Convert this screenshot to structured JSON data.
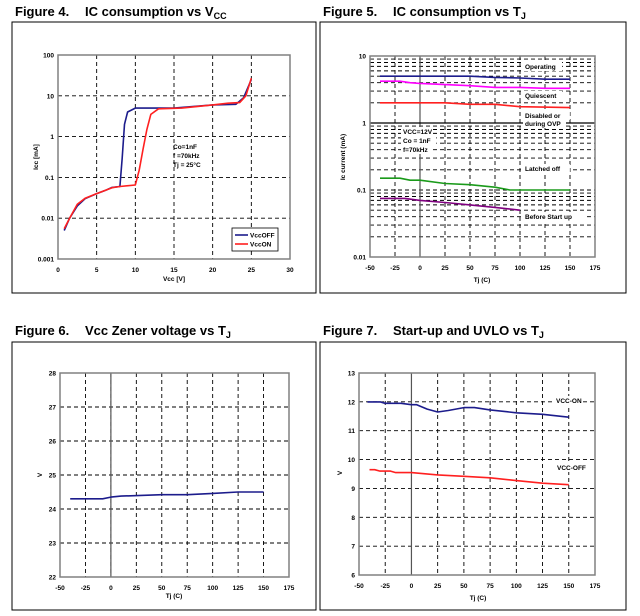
{
  "chart_data": [
    {
      "id": "fig4",
      "type": "line",
      "figure_label": "Figure 4.",
      "title": "IC consumption vs V",
      "title_sub": "CC",
      "xlabel": "Vcc [V]",
      "ylabel": "Icc [mA]",
      "xlim": [
        0,
        30
      ],
      "ylim": [
        0.001,
        100
      ],
      "yscale": "log",
      "xticks": [
        "0",
        "5",
        "10",
        "15",
        "20",
        "25",
        "30"
      ],
      "yticks": [
        "0.001",
        "0.01",
        "0.1",
        "1",
        "10",
        "100"
      ],
      "grid": true,
      "legend": "bottom-right",
      "annotations": [
        "Co=1nF",
        "f =70kHz",
        "Tj =  25°C"
      ],
      "series": [
        {
          "name": "VccOFF",
          "color": "#1c1c8c",
          "x": [
            0.8,
            1.5,
            2.5,
            3.5,
            5,
            6,
            7,
            8,
            8.3,
            8.6,
            9,
            10,
            15,
            20,
            23,
            24,
            25
          ],
          "y": [
            0.005,
            0.01,
            0.02,
            0.03,
            0.04,
            0.047,
            0.057,
            0.06,
            0.3,
            2,
            4,
            5,
            5,
            6,
            6.2,
            9,
            25
          ]
        },
        {
          "name": "VccON",
          "color": "#ff2020",
          "x": [
            0.8,
            1.5,
            2.5,
            3.5,
            5,
            7,
            8,
            10,
            10.5,
            11,
            11.5,
            12,
            13,
            16,
            20,
            22,
            23.5,
            24.3,
            25
          ],
          "y": [
            0.0055,
            0.01,
            0.022,
            0.031,
            0.04,
            0.056,
            0.06,
            0.065,
            0.15,
            0.5,
            1.5,
            3.5,
            4.8,
            5,
            6,
            6.6,
            6.8,
            10,
            27
          ]
        }
      ]
    },
    {
      "id": "fig5",
      "type": "line",
      "figure_label": "Figure 5.",
      "title": "IC consumption vs T",
      "title_sub": "J",
      "xlabel": "Tj (C)",
      "ylabel": "Ic current (mA)",
      "xlim": [
        -50,
        175
      ],
      "ylim": [
        0.01,
        10
      ],
      "yscale": "log",
      "xticks": [
        "-50",
        "-25",
        "0",
        "25",
        "50",
        "75",
        "100",
        "125",
        "150",
        "175"
      ],
      "yticks": [
        "0.01",
        "0.1",
        "1",
        "10"
      ],
      "grid": true,
      "annotations": [
        "VCC=12V",
        "Co = 1nF",
        "f=70kHz"
      ],
      "series": [
        {
          "name": "Operating",
          "color": "#1c1c8c",
          "x": [
            -40,
            50,
            75,
            100,
            125,
            150
          ],
          "y": [
            5,
            5,
            4.8,
            4.7,
            4.5,
            4.5
          ]
        },
        {
          "name": "Quiescent",
          "color": "#ff00ff",
          "x": [
            -40,
            -20,
            -10,
            0,
            50,
            75,
            100,
            125,
            150
          ],
          "y": [
            4.2,
            4.2,
            4,
            3.9,
            3.6,
            3.4,
            3.4,
            3.3,
            3.3
          ]
        },
        {
          "name": "Disabled or during OVP",
          "color": "#ff2020",
          "x": [
            -40,
            25,
            50,
            75,
            100,
            150
          ],
          "y": [
            2,
            2,
            1.9,
            1.9,
            1.75,
            1.7
          ]
        },
        {
          "name": "Latched off",
          "color": "#1a9a1a",
          "x": [
            -40,
            -20,
            -10,
            0,
            25,
            50,
            75,
            90,
            150
          ],
          "y": [
            0.15,
            0.15,
            0.14,
            0.14,
            0.125,
            0.12,
            0.11,
            0.1,
            0.1
          ]
        },
        {
          "name": "Before Start up",
          "color": "#800080",
          "x": [
            -40,
            -15,
            0,
            25,
            50,
            75,
            100
          ],
          "y": [
            0.075,
            0.075,
            0.07,
            0.065,
            0.06,
            0.055,
            0.05
          ]
        }
      ]
    },
    {
      "id": "fig6",
      "type": "line",
      "figure_label": "Figure 6.",
      "title": "Vcc Zener voltage vs T",
      "title_sub": "J",
      "xlabel": "Tj (C)",
      "ylabel": "V",
      "xlim": [
        -50,
        175
      ],
      "ylim": [
        22,
        28
      ],
      "yscale": "linear",
      "xticks": [
        "-50",
        "-25",
        "0",
        "25",
        "50",
        "75",
        "100",
        "125",
        "150",
        "175"
      ],
      "yticks": [
        "22",
        "23",
        "24",
        "25",
        "26",
        "27",
        "28"
      ],
      "grid": true,
      "annotations": [],
      "series": [
        {
          "name": "Vcc Zener",
          "color": "#1c1c8c",
          "x": [
            -40,
            -8,
            0,
            10,
            50,
            75,
            100,
            125,
            150
          ],
          "y": [
            24.3,
            24.3,
            24.35,
            24.38,
            24.42,
            24.42,
            24.46,
            24.5,
            24.5
          ]
        }
      ]
    },
    {
      "id": "fig7",
      "type": "line",
      "figure_label": "Figure 7.",
      "title": "Start-up and UVLO vs T",
      "title_sub": "J",
      "xlabel": "Tj (C)",
      "ylabel": "V",
      "xlim": [
        -50,
        175
      ],
      "ylim": [
        6,
        13
      ],
      "yscale": "linear",
      "xticks": [
        "-50",
        "-25",
        "0",
        "25",
        "50",
        "75",
        "100",
        "125",
        "150",
        "175"
      ],
      "yticks": [
        "6",
        "7",
        "8",
        "9",
        "10",
        "11",
        "12",
        "13"
      ],
      "grid": true,
      "annotations": [],
      "series": [
        {
          "name": "VCC-ON",
          "color": "#1c1c8c",
          "x": [
            -42,
            -30,
            -25,
            -10,
            0,
            5,
            15,
            25,
            35,
            50,
            60,
            75,
            100,
            125,
            150
          ],
          "y": [
            12,
            12,
            11.95,
            11.95,
            11.9,
            11.9,
            11.75,
            11.65,
            11.7,
            11.8,
            11.8,
            11.72,
            11.62,
            11.57,
            11.47
          ]
        },
        {
          "name": "VCC-OFF",
          "color": "#ff2020",
          "x": [
            -40,
            -35,
            -30,
            -20,
            -15,
            0,
            25,
            50,
            75,
            100,
            125,
            150
          ],
          "y": [
            9.65,
            9.65,
            9.6,
            9.6,
            9.55,
            9.55,
            9.47,
            9.42,
            9.37,
            9.27,
            9.18,
            9.13
          ]
        }
      ]
    }
  ]
}
